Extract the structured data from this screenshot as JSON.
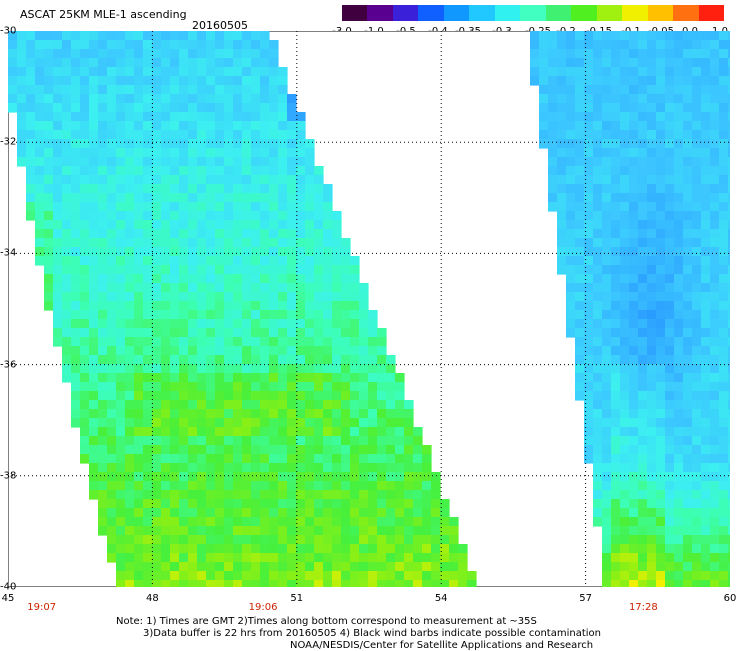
{
  "header": {
    "title": "ASCAT 25KM MLE-1 ascending",
    "date": "20160505"
  },
  "colorbar": {
    "colors": [
      "#400040",
      "#5a0090",
      "#3a20d8",
      "#1060ff",
      "#1098ff",
      "#20c8ff",
      "#30f0f0",
      "#40ffc0",
      "#40f070",
      "#50f020",
      "#a0f010",
      "#f0f000",
      "#ffc000",
      "#ff7010",
      "#ff2010"
    ],
    "labels": [
      "-3.0",
      "-1.0",
      "-0.5",
      "-0.4",
      "-0.35",
      "-0.3",
      "-0.25",
      "-0.2",
      "-0.15",
      "-0.1",
      "-0.05",
      "0.0",
      "1.0"
    ]
  },
  "axes": {
    "lat_labels": [
      "-30",
      "-32",
      "-34",
      "-36",
      "-38",
      "-40"
    ],
    "lon_labels": [
      "45",
      "48",
      "51",
      "54",
      "57",
      "60"
    ],
    "times": [
      {
        "label": "19:07",
        "lon": 45.7
      },
      {
        "label": "19:06",
        "lon": 50.3
      },
      {
        "label": "17:28",
        "lon": 58.2
      }
    ]
  },
  "notes": {
    "line1": "Note: 1) Times are GMT 2)Times along bottom correspond to measurement at ~35S",
    "line2": "3)Data buffer is 22 hrs from 20160505 4) Black wind barbs indicate possible contamination",
    "line3": "NOAA/NESDIS/Center for Satellite Applications and Research"
  }
}
